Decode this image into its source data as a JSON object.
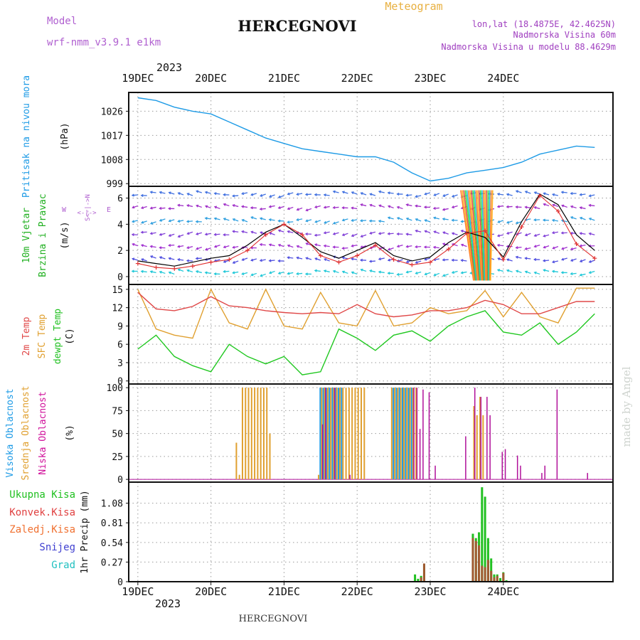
{
  "header": {
    "model_label": "Model",
    "model_name": "wrf-nmm_v3.9.1 e1km",
    "station": "HERCEGNOVI",
    "meteogram": "Meteogram",
    "lonlat": "lon,lat (18.4875E, 42.4625N)",
    "alt1": "Nadmorska Visina 60m",
    "alt2": "Nadmorska Visina u modelu 88.4629m",
    "footer_station": "HERCEGNOVI",
    "watermark": "made by Angel",
    "year": "2023",
    "days": [
      "19DEC",
      "20DEC",
      "21DEC",
      "22DEC",
      "23DEC",
      "24DEC"
    ]
  },
  "colors": {
    "pressure": "#1e9be6",
    "speed": "#e03030",
    "gust": "#000000",
    "t2m": "#e04848",
    "sfc": "#e0a030",
    "dew": "#20c820",
    "cloud_high": "#1e9be6",
    "cloud_mid": "#e0a030",
    "cloud_low": "#b0109a",
    "rain_total": "#20c020",
    "rain_conv": "#e04040",
    "freeze": "#f07030",
    "snow": "#4040d0",
    "grad": "#20c0c0",
    "title_left": "#b060d0",
    "title_right": "#a040c0",
    "meteogram": "#e8b040"
  },
  "chart_data": [
    {
      "name": "pressure",
      "type": "line",
      "ylabel": "Pritisak na nivou mora",
      "unit": "(hPa)",
      "yticks": [
        999,
        1008,
        1017,
        1026
      ],
      "ylim": [
        998,
        1033
      ],
      "x": [
        0,
        6,
        12,
        18,
        24,
        30,
        36,
        42,
        48,
        54,
        60,
        66,
        72,
        78,
        84,
        90,
        96,
        102,
        108,
        114,
        120,
        126,
        132,
        138,
        144,
        150
      ],
      "values": [
        1031,
        1030,
        1027.5,
        1026,
        1025,
        1022,
        1019,
        1016,
        1014,
        1012,
        1011,
        1010,
        1009,
        1009,
        1007,
        1003,
        1000,
        1001,
        1003,
        1004,
        1005,
        1007,
        1010,
        1011.5,
        1013,
        1012.5
      ]
    },
    {
      "name": "wind",
      "type": "line",
      "ylabel": "10m Vjetar",
      "ylabel2": "Brzina i Pravac",
      "unit": "(m/s)",
      "compass": "N^SW E",
      "yticks": [
        0,
        2,
        4,
        6
      ],
      "ylim": [
        -0.6,
        6.9
      ],
      "x": [
        0,
        6,
        12,
        18,
        24,
        30,
        36,
        42,
        48,
        54,
        60,
        66,
        72,
        78,
        84,
        90,
        96,
        102,
        108,
        114,
        120,
        126,
        132,
        138,
        144,
        150
      ],
      "speed": [
        1,
        0.7,
        0.6,
        0.8,
        1.1,
        1.3,
        2.0,
        3.2,
        4.0,
        3.2,
        1.6,
        1.1,
        1.6,
        2.4,
        1.3,
        0.9,
        1.1,
        2.1,
        3.3,
        3.5,
        1.3,
        3.8,
        6.2,
        5.0,
        2.5,
        1.4
      ],
      "gust": [
        1.2,
        1.0,
        0.8,
        1.1,
        1.4,
        1.6,
        2.4,
        3.4,
        4.0,
        3.0,
        1.9,
        1.4,
        2.0,
        2.6,
        1.6,
        1.2,
        1.5,
        2.6,
        3.4,
        3.0,
        1.5,
        4.2,
        6.3,
        5.5,
        3.2,
        2.0
      ]
    },
    {
      "name": "temperature",
      "type": "line",
      "ylabels": [
        "2m Temp",
        "SFC Temp",
        "dewpt Temp"
      ],
      "unit": "(C)",
      "yticks": [
        0,
        3,
        6,
        9,
        12,
        15
      ],
      "ylim": [
        -0.5,
        15.8
      ],
      "x": [
        0,
        6,
        12,
        18,
        24,
        30,
        36,
        42,
        48,
        54,
        60,
        66,
        72,
        78,
        84,
        90,
        96,
        102,
        108,
        114,
        120,
        126,
        132,
        138,
        144,
        150
      ],
      "t2m": [
        14.5,
        11.8,
        11.5,
        12.2,
        13.8,
        12.3,
        12.0,
        11.5,
        11.2,
        11.0,
        11.2,
        11.0,
        12.5,
        11.0,
        10.5,
        10.8,
        11.5,
        11.5,
        12.0,
        13.2,
        12.5,
        11.0,
        11.0,
        12.0,
        13.0,
        13.0
      ],
      "sfc": [
        15.0,
        8.5,
        7.5,
        7.0,
        15.0,
        9.5,
        8.5,
        15.0,
        9.0,
        8.5,
        14.5,
        9.5,
        9.0,
        14.8,
        9.0,
        9.5,
        12.0,
        11.0,
        11.5,
        14.8,
        10.5,
        14.5,
        10.5,
        9.5,
        15.2,
        15.2
      ],
      "dew": [
        5.2,
        7.5,
        4.0,
        2.5,
        1.5,
        6.0,
        4.0,
        2.8,
        4.0,
        1.0,
        1.5,
        8.5,
        7.0,
        5.0,
        7.5,
        8.2,
        6.5,
        9.0,
        10.5,
        11.5,
        8.0,
        7.5,
        9.5,
        6.0,
        8.0,
        11.0
      ]
    },
    {
      "name": "cloud",
      "type": "bar",
      "ylabels": [
        "Visoka Oblacnost",
        "Srednja Oblacnost",
        "Niska Oblacnost"
      ],
      "unit": "(%)",
      "yticks": [
        0,
        25,
        50,
        75,
        100
      ],
      "ylim": [
        -3,
        104
      ],
      "high": [
        [
          60,
          100
        ],
        [
          61,
          100
        ],
        [
          62,
          100
        ],
        [
          63,
          100
        ],
        [
          64,
          100
        ],
        [
          65,
          100
        ],
        [
          66,
          100
        ],
        [
          67,
          100
        ],
        [
          84,
          100
        ],
        [
          85,
          100
        ],
        [
          86,
          100
        ],
        [
          87,
          100
        ],
        [
          88,
          100
        ],
        [
          89,
          100
        ],
        [
          90,
          100
        ]
      ],
      "mid": [
        [
          32,
          40
        ],
        [
          33,
          5
        ],
        [
          34,
          100
        ],
        [
          35,
          100
        ],
        [
          36,
          100
        ],
        [
          37,
          100
        ],
        [
          38,
          100
        ],
        [
          39,
          100
        ],
        [
          40,
          100
        ],
        [
          41,
          100
        ],
        [
          42,
          100
        ],
        [
          43,
          50
        ],
        [
          59,
          5
        ],
        [
          60,
          100
        ],
        [
          61,
          100
        ],
        [
          62,
          100
        ],
        [
          63,
          100
        ],
        [
          64,
          100
        ],
        [
          65,
          100
        ],
        [
          66,
          100
        ],
        [
          67,
          100
        ],
        [
          68,
          100
        ],
        [
          69,
          100
        ],
        [
          70,
          100
        ],
        [
          71,
          100
        ],
        [
          72,
          100
        ],
        [
          73,
          100
        ],
        [
          74,
          100
        ],
        [
          83,
          100
        ],
        [
          84,
          100
        ],
        [
          85,
          100
        ],
        [
          86,
          100
        ],
        [
          87,
          100
        ],
        [
          88,
          100
        ],
        [
          89,
          100
        ],
        [
          90,
          100
        ],
        [
          91,
          100
        ],
        [
          110,
          80
        ],
        [
          111,
          70
        ],
        [
          112,
          90
        ],
        [
          113,
          70
        ]
      ],
      "low": [
        [
          60,
          60
        ],
        [
          61,
          100
        ],
        [
          64,
          100
        ],
        [
          69,
          5
        ],
        [
          90,
          100
        ],
        [
          91,
          100
        ],
        [
          92,
          55
        ],
        [
          93,
          98
        ],
        [
          95,
          95
        ],
        [
          97,
          15
        ],
        [
          107,
          47
        ],
        [
          110,
          100
        ],
        [
          112,
          90
        ],
        [
          114,
          90
        ],
        [
          115,
          70
        ],
        [
          119,
          30
        ],
        [
          120,
          33
        ],
        [
          124,
          26
        ],
        [
          125,
          15
        ],
        [
          132,
          7
        ],
        [
          133,
          15
        ],
        [
          137,
          98
        ],
        [
          147,
          7
        ]
      ]
    },
    {
      "name": "precip",
      "type": "bar",
      "ylabels": [
        "Ukupna Kisa",
        "Konvek.Kisa",
        "Zaledj.Kisa",
        "Snijeg",
        "Grad"
      ],
      "ytitle": "1hr Precip (mm)",
      "yticks": [
        0,
        0.27,
        0.54,
        0.81,
        1.08
      ],
      "yticklabels": [
        "0",
        "0.27",
        "0.54",
        "0.81",
        "1.08"
      ],
      "ylim": [
        0,
        1.37
      ],
      "total": [
        [
          91,
          0.1
        ],
        [
          92,
          0.04
        ],
        [
          93,
          0.08
        ],
        [
          94,
          0.24
        ],
        [
          110,
          0.66
        ],
        [
          111,
          0.6
        ],
        [
          112,
          0.68
        ],
        [
          113,
          1.3
        ],
        [
          114,
          1.17
        ],
        [
          115,
          0.6
        ],
        [
          116,
          0.32
        ],
        [
          117,
          0.1
        ],
        [
          118,
          0.1
        ],
        [
          119,
          0.05
        ],
        [
          120,
          0.13
        ],
        [
          121,
          0.02
        ]
      ],
      "conv": [
        [
          93,
          0.06
        ],
        [
          94,
          0.25
        ],
        [
          110,
          0.6
        ],
        [
          111,
          0.56
        ],
        [
          112,
          0.5
        ],
        [
          113,
          0.22
        ],
        [
          114,
          0.2
        ],
        [
          115,
          0.3
        ],
        [
          116,
          0.15
        ],
        [
          117,
          0.06
        ],
        [
          118,
          0.08
        ],
        [
          120,
          0.12
        ]
      ]
    }
  ]
}
